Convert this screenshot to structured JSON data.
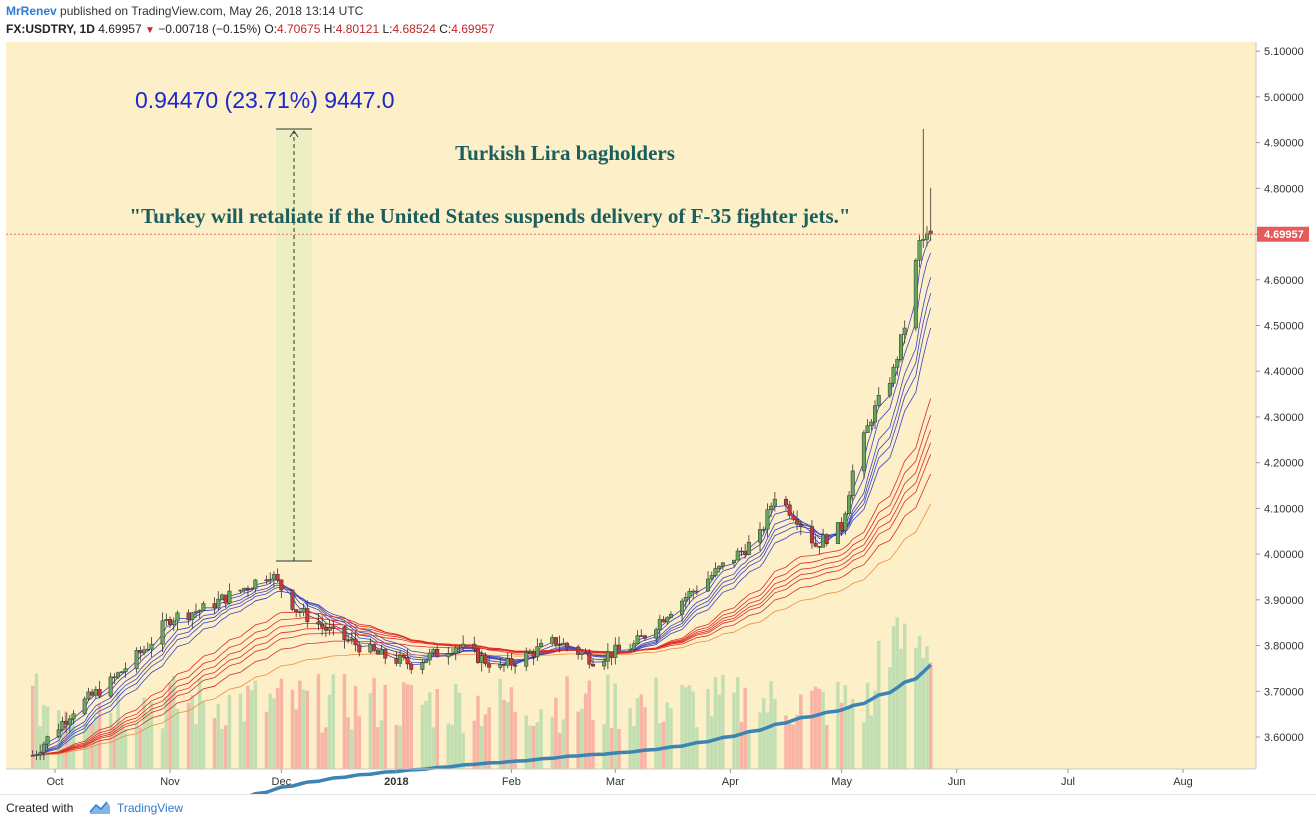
{
  "header": {
    "author": "MrRenev",
    "published": "published on TradingView.com, May 26, 2018 13:14 UTC",
    "symbol": "FX:USDTRY, 1D",
    "last": "4.69957",
    "change": "−0.00718 (−0.15%)",
    "open_label": "O:",
    "open": "4.70675",
    "high_label": "H:",
    "high": "4.80121",
    "low_label": "L:",
    "low": "4.68524",
    "close_label": "C:",
    "close": "4.69957"
  },
  "footer": {
    "created": "Created with",
    "brand": "TradingView"
  },
  "colors": {
    "background": "#fdf0c8",
    "up": "#66a55a",
    "down": "#c6393b",
    "volume_up": "#b8dcae",
    "volume_down": "#f7aaa0",
    "ma200": "#3b84b3",
    "ma_fast": "#3943c7",
    "ma_slow": "#e02a24",
    "ma_slow_orange": "#ee8a3e",
    "price_line": "#e57373",
    "annotation": "#1b5e5e",
    "measure": "#1a28cc"
  },
  "chart_data": {
    "type": "candlestick",
    "symbol": "FX:USDTRY",
    "interval": "1D",
    "x_ticks": [
      "Oct",
      "Nov",
      "Dec",
      "2018",
      "Feb",
      "Mar",
      "Apr",
      "May",
      "Jun",
      "Jul",
      "Aug"
    ],
    "y_ticks": [
      "3.60000",
      "3.70000",
      "3.80000",
      "3.90000",
      "4.00000",
      "4.10000",
      "4.20000",
      "4.30000",
      "4.40000",
      "4.50000",
      "4.60000",
      "4.70000",
      "4.80000",
      "4.90000",
      "5.00000",
      "5.10000"
    ],
    "ylim": [
      3.53,
      5.12
    ],
    "last_price_label": "4.69957",
    "last_price": 4.69957,
    "grid": false,
    "monthly_path": [
      {
        "date": "2017-09-25",
        "value": 3.56
      },
      {
        "date": "2017-10-06",
        "value": 3.66
      },
      {
        "date": "2017-10-16",
        "value": 3.72
      },
      {
        "date": "2017-10-26",
        "value": 3.8
      },
      {
        "date": "2017-11-01",
        "value": 3.86
      },
      {
        "date": "2017-11-10",
        "value": 3.88
      },
      {
        "date": "2017-11-22",
        "value": 3.93
      },
      {
        "date": "2017-11-28",
        "value": 3.96
      },
      {
        "date": "2017-12-05",
        "value": 3.88
      },
      {
        "date": "2017-12-14",
        "value": 3.83
      },
      {
        "date": "2017-12-27",
        "value": 3.78
      },
      {
        "date": "2018-01-05",
        "value": 3.76
      },
      {
        "date": "2018-01-17",
        "value": 3.8
      },
      {
        "date": "2018-01-29",
        "value": 3.75
      },
      {
        "date": "2018-02-13",
        "value": 3.81
      },
      {
        "date": "2018-02-23",
        "value": 3.77
      },
      {
        "date": "2018-03-06",
        "value": 3.8
      },
      {
        "date": "2018-03-16",
        "value": 3.88
      },
      {
        "date": "2018-03-28",
        "value": 3.96
      },
      {
        "date": "2018-04-09",
        "value": 4.04
      },
      {
        "date": "2018-04-13",
        "value": 4.13
      },
      {
        "date": "2018-04-19",
        "value": 4.08
      },
      {
        "date": "2018-04-24",
        "value": 4.02
      },
      {
        "date": "2018-05-01",
        "value": 4.06
      },
      {
        "date": "2018-05-04",
        "value": 4.18
      },
      {
        "date": "2018-05-09",
        "value": 4.3
      },
      {
        "date": "2018-05-15",
        "value": 4.4
      },
      {
        "date": "2018-05-18",
        "value": 4.5
      },
      {
        "date": "2018-05-22",
        "value": 4.68
      },
      {
        "date": "2018-05-25",
        "value": 4.69957
      }
    ],
    "last_bar": {
      "date": "2018-05-25",
      "open": 4.70675,
      "high": 4.80121,
      "low": 4.68524,
      "close": 4.69957
    },
    "measurement": {
      "label": "0.94470 (23.71%) 9447.0",
      "from_price": 3.985,
      "to_price": 4.9297
    },
    "annotations": [
      "Turkish Lira bagholders",
      "\"Turkey will retaliate if the United States suspends delivery of F-35 fighter jets.\""
    ],
    "moving_averages": {
      "fast_ribbon_color": "blue",
      "slow_ribbon_color": "red",
      "long_ma_color": "steelblue"
    }
  }
}
